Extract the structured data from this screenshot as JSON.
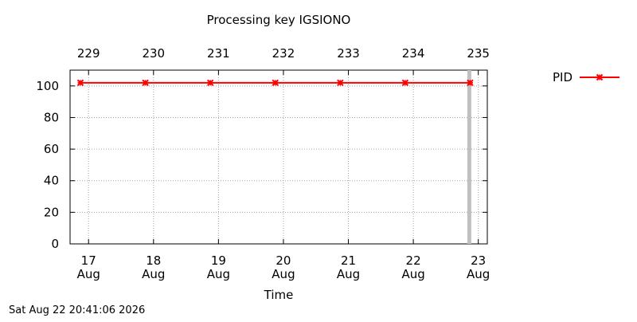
{
  "chart_data": {
    "type": "line",
    "title": "Processing key IGSIONO",
    "xlabel": "Time",
    "ylabel": "",
    "ylim": [
      0,
      110
    ],
    "xlim": [
      "2026-08-16 17:10",
      "2026-08-23 03:20"
    ],
    "y_ticks": [
      0,
      20,
      40,
      60,
      80,
      100
    ],
    "x_ticks": [
      {
        "at": "2026-08-17",
        "day": "17",
        "month": "Aug"
      },
      {
        "at": "2026-08-18",
        "day": "18",
        "month": "Aug"
      },
      {
        "at": "2026-08-19",
        "day": "19",
        "month": "Aug"
      },
      {
        "at": "2026-08-20",
        "day": "20",
        "month": "Aug"
      },
      {
        "at": "2026-08-21",
        "day": "21",
        "month": "Aug"
      },
      {
        "at": "2026-08-22",
        "day": "22",
        "month": "Aug"
      },
      {
        "at": "2026-08-23",
        "day": "23",
        "month": "Aug"
      }
    ],
    "x2_ticks": [
      {
        "at": "2026-08-17",
        "label": "229"
      },
      {
        "at": "2026-08-18",
        "label": "230"
      },
      {
        "at": "2026-08-19",
        "label": "231"
      },
      {
        "at": "2026-08-20",
        "label": "232"
      },
      {
        "at": "2026-08-21",
        "label": "233"
      },
      {
        "at": "2026-08-22",
        "label": "234"
      },
      {
        "at": "2026-08-23",
        "label": "235"
      }
    ],
    "grid": true,
    "legend_position": "top-right, outside plot",
    "series": [
      {
        "name": "PID",
        "color": "#ff0000",
        "marker": "x-cross",
        "x": [
          "2026-08-16 21:00",
          "2026-08-17 21:00",
          "2026-08-18 21:00",
          "2026-08-19 21:00",
          "2026-08-20 21:00",
          "2026-08-21 21:00",
          "2026-08-22 21:00"
        ],
        "y": [
          102,
          102,
          102,
          102,
          102,
          102,
          102
        ]
      }
    ],
    "now_marker": {
      "at": "2026-08-22 20:41",
      "color": "#c0c0c0"
    }
  },
  "footer": {
    "timestamp": "Sat Aug 22 20:41:06 2026"
  }
}
